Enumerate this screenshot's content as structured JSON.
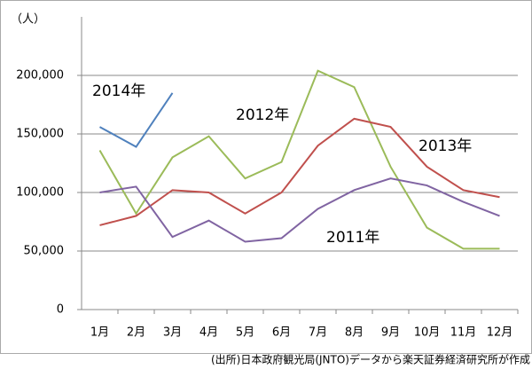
{
  "chart_data": {
    "type": "line",
    "unit_label": "（人）",
    "source": "(出所)日本政府観光局(JNTO)データから楽天証券経済研究所が作成",
    "categories": [
      "1月",
      "2月",
      "3月",
      "4月",
      "5月",
      "6月",
      "7月",
      "8月",
      "9月",
      "10月",
      "11月",
      "12月"
    ],
    "series": [
      {
        "name": "2014年",
        "color": "#4f81bd",
        "values": [
          156000,
          139000,
          185000,
          null,
          null,
          null,
          null,
          null,
          null,
          null,
          null,
          null
        ]
      },
      {
        "name": "2012年",
        "color": "#9bbb59",
        "values": [
          136000,
          82000,
          130000,
          148000,
          112000,
          126000,
          204000,
          190000,
          122000,
          70000,
          52000,
          52000
        ]
      },
      {
        "name": "2013年",
        "color": "#c0504d",
        "values": [
          72000,
          80000,
          102000,
          100000,
          82000,
          100000,
          140000,
          163000,
          156000,
          122000,
          102000,
          96000
        ]
      },
      {
        "name": "2011年",
        "color": "#8064a2",
        "values": [
          100000,
          105000,
          62000,
          76000,
          58000,
          61000,
          86000,
          102000,
          112000,
          106000,
          92000,
          80000
        ]
      }
    ],
    "ylim": [
      0,
      250000
    ],
    "yticks": [
      0,
      {
        "value": 50000,
        "label": "50,000"
      },
      {
        "value": 100000,
        "label": "100,000"
      },
      {
        "value": 150000,
        "label": "150,000"
      },
      {
        "value": 200000,
        "label": "200,000"
      }
    ],
    "grid": true
  }
}
